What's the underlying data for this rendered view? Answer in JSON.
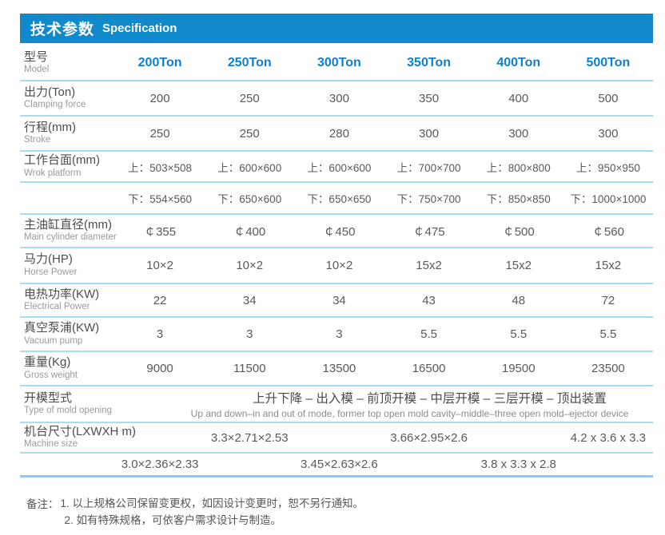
{
  "colors": {
    "header_bg": "#1289cb",
    "model_text": "#0d80d0",
    "divider": "#a9dcf4",
    "divider_strong": "#88cdf0"
  },
  "header": {
    "title_zh": "技术参数",
    "title_en": "Specification"
  },
  "columns": {
    "label_zh": "型号",
    "label_en": "Model",
    "models": [
      "200Ton",
      "250Ton",
      "300Ton",
      "350Ton",
      "400Ton",
      "500Ton"
    ]
  },
  "rows": {
    "clamping": {
      "zh": "出力(Ton)",
      "en": "Clamping force",
      "v": [
        "200",
        "250",
        "300",
        "350",
        "400",
        "500"
      ]
    },
    "stroke": {
      "zh": "行程(mm)",
      "en": "Stroke",
      "v": [
        "250",
        "250",
        "280",
        "300",
        "300",
        "300"
      ]
    },
    "platform": {
      "zh": "工作台面(mm)",
      "en": "Wrok platform",
      "upper": [
        "上：503×508",
        "上：600×600",
        "上：600×600",
        "上：700×700",
        "上：800×800",
        "上：950×950"
      ],
      "lower": [
        "下：554×560",
        "下：650×600",
        "下：650×650",
        "下：750×700",
        "下：850×850",
        "下：1000×1000"
      ]
    },
    "cylinder": {
      "zh": "主油缸直径(mm)",
      "en": "Main cylinder diameter",
      "v": [
        "￠355",
        "￠400",
        "￠450",
        "￠475",
        "￠500",
        "￠560"
      ]
    },
    "horsepower": {
      "zh": "马力(HP)",
      "en": "Horse Power",
      "v": [
        "10×2",
        "10×2",
        "10×2",
        "15x2",
        "15x2",
        "15x2"
      ]
    },
    "electrical": {
      "zh": "电热功率(KW)",
      "en": "Electrical Power",
      "v": [
        "22",
        "34",
        "34",
        "43",
        "48",
        "72"
      ]
    },
    "vacuum": {
      "zh": "真空泵浦(KW)",
      "en": "Vacuum pump",
      "v": [
        "3",
        "3",
        "3",
        "5.5",
        "5.5",
        "5.5"
      ]
    },
    "weight": {
      "zh": "重量(Kg)",
      "en": "Gross weight",
      "v": [
        "9000",
        "11500",
        "13500",
        "16500",
        "19500",
        "23500"
      ]
    },
    "mold": {
      "zh": "开模型式",
      "en": "Type of mold opening",
      "value_zh": "上升下降 – 出入模 – 前顶开模 – 中层开模 – 三层开模 – 顶出装置",
      "value_en": "Up and down–in and out of mode, former top open mold cavity–middle–three open mold–ejector device"
    },
    "size": {
      "zh": "机台尺寸(LXWXH m)",
      "en": "Machine size",
      "row1": [
        "3.3×2.71×2.53",
        "3.66×2.95×2.6",
        "4.2 x 3.6 x 3.3"
      ],
      "row2": [
        "3.0×2.36×2.33",
        "3.45×2.63×2.6",
        "3.8 x 3.3 x 2.8"
      ]
    }
  },
  "notes": {
    "label": "备注：",
    "line1": "1. 以上规格公司保留变更权，如因设计变更时，恕不另行通知。",
    "line2": "2. 如有特殊规格，可依客户需求设计与制造。"
  }
}
